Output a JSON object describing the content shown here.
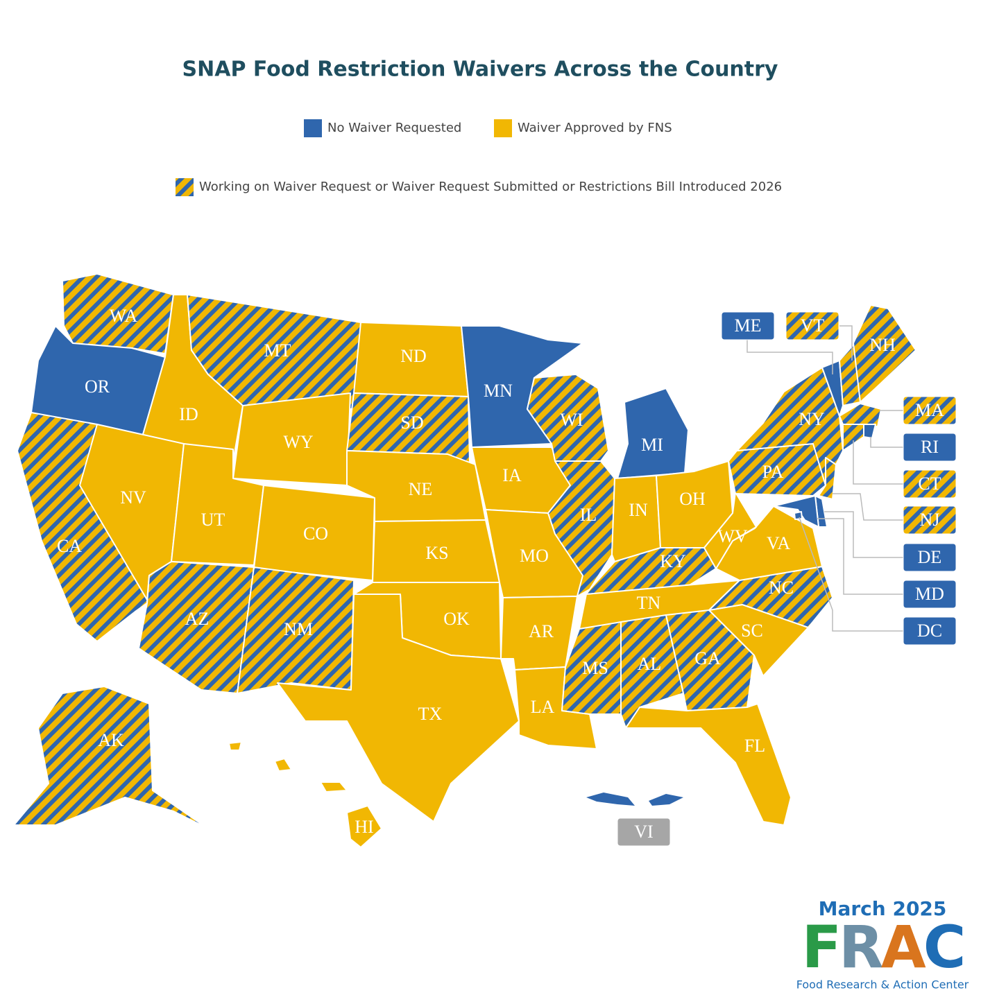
{
  "header": {
    "title": "SNAP Food Restriction Waivers Across the Country"
  },
  "legend": [
    {
      "label": "No Waiver Requested",
      "color": "#2f66ad"
    },
    {
      "label": "Waiver Approved by FNS",
      "color": "#f1b703"
    },
    {
      "label": "Working on Waiver Request or Waiver Request Submitted or Restrictions Bill Introduced 2026",
      "color": "#f1b703",
      "stripe_color": "#2f66ad"
    }
  ],
  "states": [
    {
      "abbr": "WA",
      "status": 2
    },
    {
      "abbr": "OR",
      "status": 0
    },
    {
      "abbr": "CA",
      "status": 2
    },
    {
      "abbr": "ID",
      "status": 1
    },
    {
      "abbr": "NV",
      "status": 1
    },
    {
      "abbr": "MT",
      "status": 2
    },
    {
      "abbr": "WY",
      "status": 1
    },
    {
      "abbr": "UT",
      "status": 1
    },
    {
      "abbr": "AZ",
      "status": 2
    },
    {
      "abbr": "CO",
      "status": 1
    },
    {
      "abbr": "NM",
      "status": 2
    },
    {
      "abbr": "ND",
      "status": 1
    },
    {
      "abbr": "SD",
      "status": 2
    },
    {
      "abbr": "NE",
      "status": 1
    },
    {
      "abbr": "KS",
      "status": 1
    },
    {
      "abbr": "OK",
      "status": 1
    },
    {
      "abbr": "TX",
      "status": 1
    },
    {
      "abbr": "MN",
      "status": 0
    },
    {
      "abbr": "IA",
      "status": 1
    },
    {
      "abbr": "MO",
      "status": 1
    },
    {
      "abbr": "AR",
      "status": 1
    },
    {
      "abbr": "LA",
      "status": 1
    },
    {
      "abbr": "WI",
      "status": 2
    },
    {
      "abbr": "IL",
      "status": 2
    },
    {
      "abbr": "MI",
      "status": 0
    },
    {
      "abbr": "IN",
      "status": 1
    },
    {
      "abbr": "OH",
      "status": 1
    },
    {
      "abbr": "KY",
      "status": 2
    },
    {
      "abbr": "TN",
      "status": 1
    },
    {
      "abbr": "MS",
      "status": 2
    },
    {
      "abbr": "AL",
      "status": 2
    },
    {
      "abbr": "GA",
      "status": 2
    },
    {
      "abbr": "FL",
      "status": 1
    },
    {
      "abbr": "SC",
      "status": 1
    },
    {
      "abbr": "NC",
      "status": 2
    },
    {
      "abbr": "VA",
      "status": 1
    },
    {
      "abbr": "WV",
      "status": 1
    },
    {
      "abbr": "PA",
      "status": 2
    },
    {
      "abbr": "NY",
      "status": 2
    },
    {
      "abbr": "ME",
      "status": 0
    },
    {
      "abbr": "VT",
      "status": 2
    },
    {
      "abbr": "NH",
      "status": 2
    },
    {
      "abbr": "MA",
      "status": 2
    },
    {
      "abbr": "RI",
      "status": 0
    },
    {
      "abbr": "CT",
      "status": 2
    },
    {
      "abbr": "NJ",
      "status": 2
    },
    {
      "abbr": "DE",
      "status": 0
    },
    {
      "abbr": "MD",
      "status": 0
    },
    {
      "abbr": "DC",
      "status": 0
    },
    {
      "abbr": "AK",
      "status": 2
    },
    {
      "abbr": "HI",
      "status": 1
    },
    {
      "abbr": "VI"
    }
  ],
  "footer": {
    "date": "March 2025",
    "logo": "FRAC",
    "org": "Food Research & Action Center"
  }
}
